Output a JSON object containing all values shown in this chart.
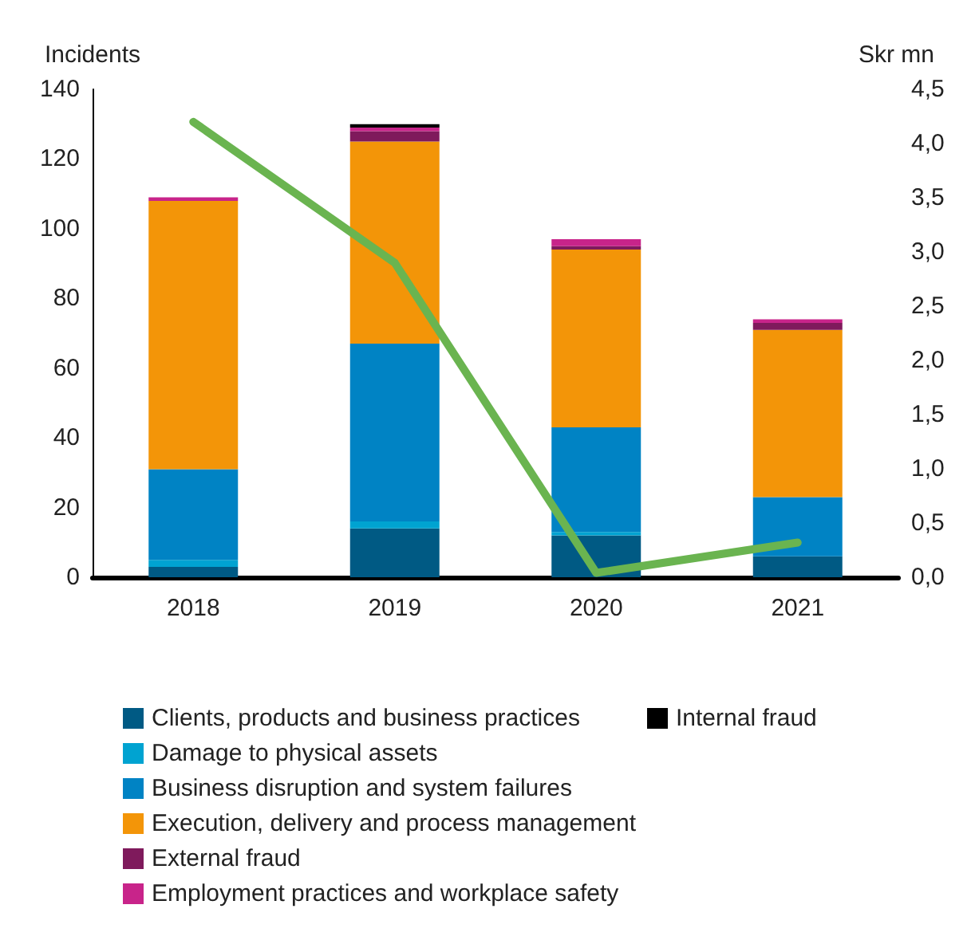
{
  "chart_data": {
    "type": "bar",
    "stacked": true,
    "ylabel": "Incidents",
    "y2label": "Skr mn",
    "categories": [
      "2018",
      "2019",
      "2020",
      "2021"
    ],
    "series": [
      {
        "name": "Clients, products and business practices",
        "color": "#005a84",
        "values": [
          3,
          14,
          12,
          6
        ]
      },
      {
        "name": "Damage to physical assets",
        "color": "#00a3d1",
        "values": [
          2,
          2,
          1,
          0
        ]
      },
      {
        "name": "Business disruption and system failures",
        "color": "#0083c4",
        "values": [
          26,
          51,
          30,
          17
        ]
      },
      {
        "name": "Execution, delivery and process management",
        "color": "#f39508",
        "values": [
          77,
          58,
          51,
          48
        ]
      },
      {
        "name": "External fraud",
        "color": "#7f1a5c",
        "values": [
          0,
          3,
          1,
          2
        ]
      },
      {
        "name": "Employment practices and workplace safety",
        "color": "#c8248a",
        "values": [
          1,
          1,
          2,
          1
        ]
      },
      {
        "name": "Internal fraud",
        "color": "#000000",
        "values": [
          0,
          1,
          0,
          0
        ]
      },
      {
        "type": "line",
        "axis": "y2",
        "color": "#6ab450",
        "values": [
          4.2,
          2.9,
          0.04,
          0.32
        ]
      }
    ],
    "ylim": [
      0,
      140
    ],
    "yticks": [
      0,
      20,
      40,
      60,
      80,
      100,
      120,
      140
    ],
    "y2lim": [
      0,
      4.5
    ],
    "y2ticks": [
      {
        "value": 0,
        "label": "0,0"
      },
      {
        "value": 0.5,
        "label": "0,5"
      },
      {
        "value": 1,
        "label": "1,0"
      },
      {
        "value": 1.5,
        "label": "1,5"
      },
      {
        "value": 2,
        "label": "2,0"
      },
      {
        "value": 2.5,
        "label": "2,5"
      },
      {
        "value": 3,
        "label": "3,0"
      },
      {
        "value": 3.5,
        "label": "3,5"
      },
      {
        "value": 4,
        "label": "4,0"
      },
      {
        "value": 4.5,
        "label": "4,5"
      }
    ],
    "grid": false,
    "legend": "bottom",
    "marker": "none"
  }
}
